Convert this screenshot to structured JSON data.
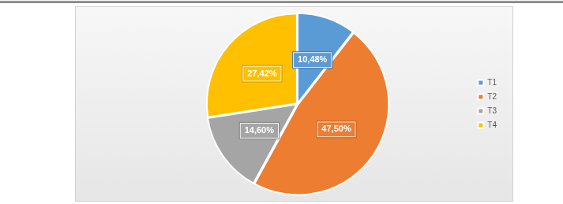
{
  "chart_data": {
    "type": "pie",
    "categories": [
      "T1",
      "T2",
      "T3",
      "T4"
    ],
    "values": [
      10.48,
      47.5,
      14.6,
      27.42
    ],
    "value_labels": [
      "10,48%",
      "47,50%",
      "14,60%",
      "27,42%"
    ],
    "colors": [
      "#5b9bd5",
      "#ed7d31",
      "#a5a5a5",
      "#ffc000"
    ],
    "data_labels": true,
    "legend": "right"
  }
}
